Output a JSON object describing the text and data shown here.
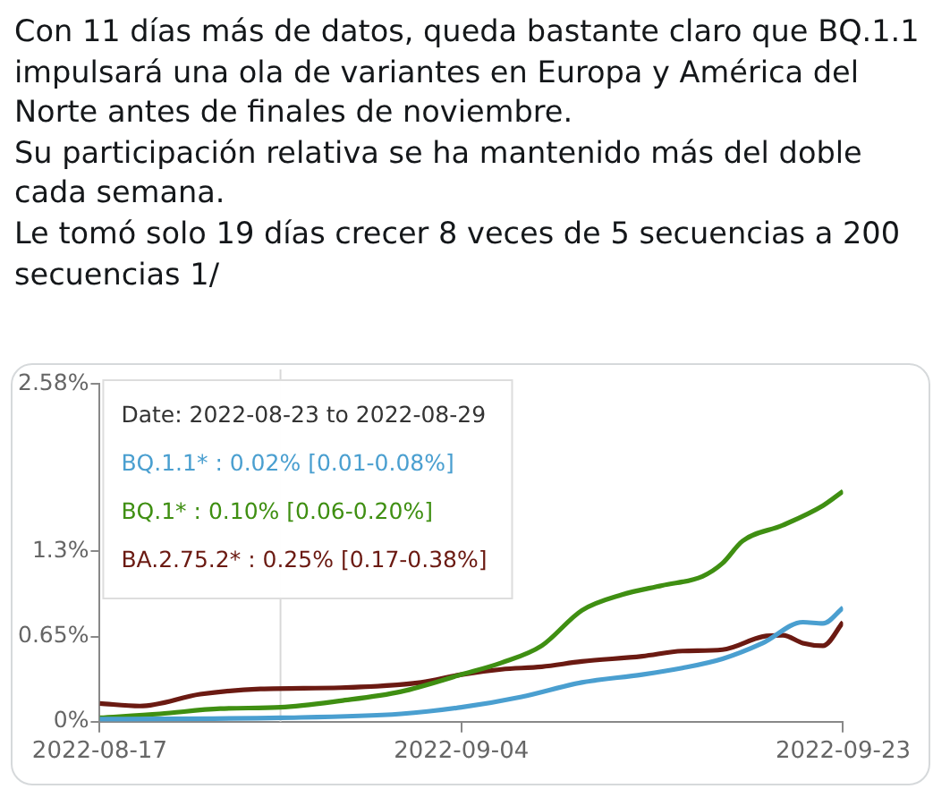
{
  "chart_data": {
    "type": "line",
    "title": "Con 11 días más de datos, queda bastante claro que BQ.1.1 impulsará una ola de variantes en Europa y América del Norte antes de finales de noviembre.\nSu participación relativa se ha mantenido más del doble cada semana.\nLe tomó solo 19 días crecer 8 veces de 5 secuencias a 200 secuencias 1/",
    "series": [
      {
        "color": "#4a9fd0",
        "x": [
          "2022-08-17",
          "2022-08-26",
          "2022-09-01",
          "2022-09-04",
          "2022-09-07",
          "2022-09-10",
          "2022-09-13",
          "2022-09-15",
          "2022-09-17",
          "2022-09-19",
          "2022-09-21",
          "2022-09-22",
          "2022-09-23"
        ],
        "values": [
          0.02,
          0.03,
          0.06,
          0.11,
          0.19,
          0.3,
          0.36,
          0.41,
          0.48,
          0.6,
          0.76,
          0.75,
          0.87
        ]
      },
      {
        "color": "#3f8f12",
        "x": [
          "2022-08-17",
          "2022-08-20",
          "2022-08-23",
          "2022-08-26",
          "2022-08-29",
          "2022-09-01",
          "2022-09-04",
          "2022-09-06",
          "2022-09-08",
          "2022-09-10",
          "2022-09-12",
          "2022-09-14",
          "2022-09-16",
          "2022-09-17",
          "2022-09-18",
          "2022-09-20",
          "2022-09-22",
          "2022-09-23"
        ],
        "values": [
          0.03,
          0.06,
          0.1,
          0.11,
          0.16,
          0.23,
          0.36,
          0.45,
          0.58,
          0.85,
          0.97,
          1.04,
          1.11,
          1.21,
          1.38,
          1.5,
          1.65,
          1.76
        ]
      },
      {
        "color": "#6b1a12",
        "x": [
          "2022-08-17",
          "2022-08-19",
          "2022-08-22",
          "2022-08-25",
          "2022-08-29",
          "2022-09-02",
          "2022-09-04",
          "2022-09-06",
          "2022-09-08",
          "2022-09-10",
          "2022-09-13",
          "2022-09-15",
          "2022-09-17",
          "2022-09-19",
          "2022-09-20",
          "2022-09-21",
          "2022-09-22",
          "2022-09-23"
        ],
        "values": [
          0.14,
          0.12,
          0.21,
          0.25,
          0.26,
          0.3,
          0.36,
          0.4,
          0.42,
          0.46,
          0.5,
          0.54,
          0.55,
          0.65,
          0.66,
          0.6,
          0.58,
          0.76
        ]
      }
    ],
    "xlim": [
      "2022-08-17",
      "2022-09-23"
    ],
    "xticks": [
      "2022-08-17",
      "2022-09-04",
      "2022-09-23"
    ],
    "ylim": [
      0,
      2.58
    ],
    "yticks": [
      {
        "value": 0,
        "label": "0%"
      },
      {
        "value": 0.65,
        "label": "0.65%"
      },
      {
        "value": 1.3,
        "label": "1.3%"
      },
      {
        "value": 2.58,
        "label": "2.58%"
      }
    ],
    "ref_lines": [
      {
        "axis": "x",
        "value": "2022-08-26",
        "color": "#d8d8d8"
      }
    ],
    "annotations": [
      "Date: 2022-08-23 to 2022-08-29",
      "BQ.1.1* : 0.02% [0.01-0.08%]",
      "BQ.1* : 0.10% [0.06-0.20%]",
      "BA.2.75.2* : 0.25% [0.17-0.38%]"
    ],
    "grid": false,
    "legend": false,
    "marker": "none",
    "line_style": "solid"
  }
}
